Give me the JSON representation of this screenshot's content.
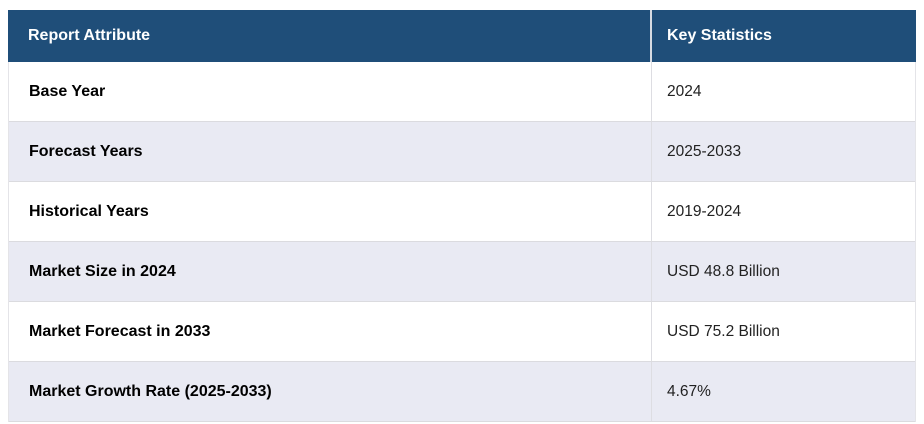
{
  "table": {
    "header": {
      "attribute": "Report Attribute",
      "statistics": "Key Statistics"
    },
    "rows": [
      {
        "attribute": "Base Year",
        "value": "2024"
      },
      {
        "attribute": "Forecast Years",
        "value": "2025-2033"
      },
      {
        "attribute": "Historical Years",
        "value": "2019-2024"
      },
      {
        "attribute": "Market Size in 2024",
        "value": "USD 48.8 Billion"
      },
      {
        "attribute": "Market Forecast in 2033",
        "value": "USD 75.2 Billion"
      },
      {
        "attribute": "Market Growth Rate (2025-2033)",
        "value": "4.67%"
      }
    ],
    "colors": {
      "header_bg": "#1F4E79",
      "header_text": "#FFFFFF",
      "header_divider": "#D6DBE3",
      "row_bg": "#FFFFFF",
      "row_alt_bg": "#E9EAF3",
      "row_border": "#DBDBDF",
      "column_divider": "#DDDDE2",
      "outer_border": "#E4E4E8",
      "label_text": "#000000",
      "value_text": "#222222"
    }
  },
  "chart_data": {
    "type": "table",
    "title": "",
    "columns": [
      "Report Attribute",
      "Key Statistics"
    ],
    "rows": [
      [
        "Base Year",
        "2024"
      ],
      [
        "Forecast Years",
        "2025-2033"
      ],
      [
        "Historical Years",
        "2019-2024"
      ],
      [
        "Market Size in 2024",
        "USD 48.8 Billion"
      ],
      [
        "Market Forecast in 2033",
        "USD 75.2 Billion"
      ],
      [
        "Market Growth Rate (2025-2033)",
        "4.67%"
      ]
    ]
  }
}
